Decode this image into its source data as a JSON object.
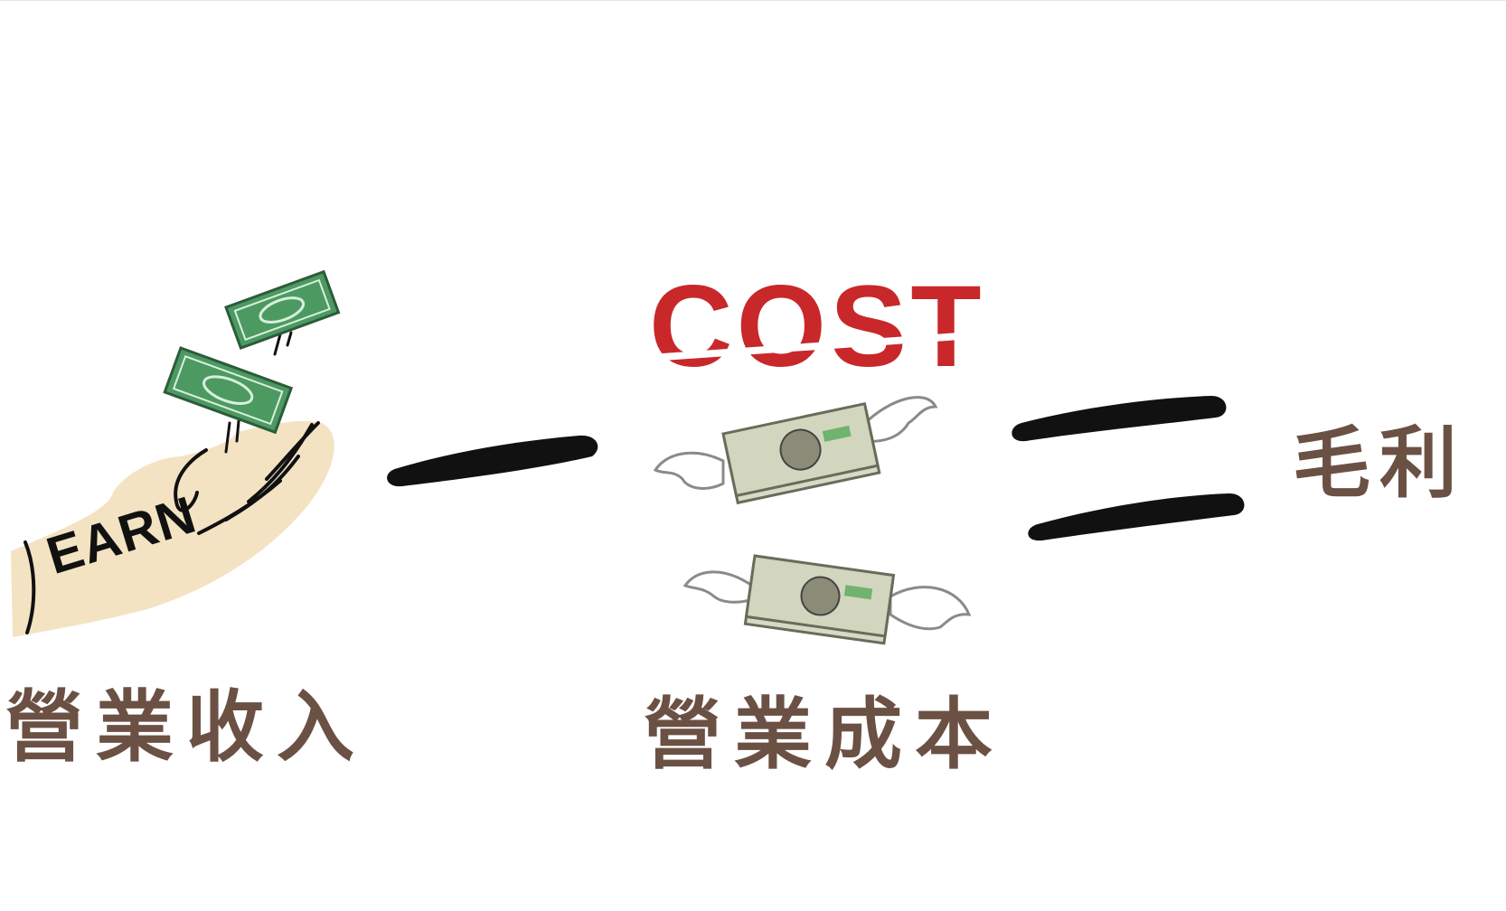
{
  "illustration": {
    "earn_text": "EARN",
    "cost_text": "COST"
  },
  "labels": {
    "revenue": "營業收入",
    "cost": "營業成本",
    "profit": "毛利"
  },
  "colors": {
    "label": "#6b5044",
    "cost_red": "#c8282a",
    "bill_green": "#4c9a62",
    "hand_skin": "#f3e3c3",
    "stroke": "#111111"
  },
  "icons": [
    "falling-money-icon",
    "hand-icon",
    "minus-sign-icon",
    "flying-money-icon",
    "equals-sign-icon"
  ]
}
